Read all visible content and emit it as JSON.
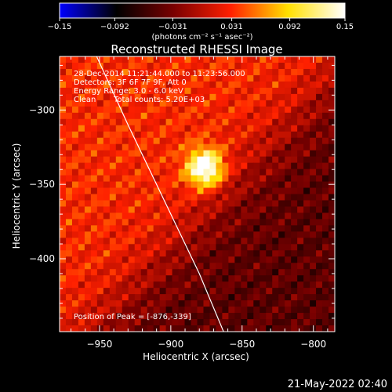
{
  "chart_data": {
    "type": "heatmap",
    "title": "Reconstructed RHESSI Image",
    "xlabel": "Heliocentric X (arcsec)",
    "ylabel": "Heliocentric Y (arcsec)",
    "xlim": [
      -978,
      -785
    ],
    "ylim": [
      -449,
      -264
    ],
    "x_ticks": [
      -950,
      -900,
      -850,
      -800
    ],
    "x_tick_labels": [
      "−950",
      "−900",
      "−850",
      "−800"
    ],
    "y_ticks": [
      -300,
      -350,
      -400
    ],
    "y_tick_labels": [
      "−300",
      "−350",
      "−400"
    ],
    "colorbar": {
      "range": [
        -0.15,
        0.15
      ],
      "ticks": [
        -0.15,
        -0.092,
        -0.031,
        0.031,
        0.092,
        0.15
      ],
      "tick_labels": [
        "−0.15",
        "−0.092",
        "−0.031",
        "0.031",
        "0.092",
        "0.15"
      ],
      "unit_label": "(photons cm⁻² s⁻¹ asec⁻²)",
      "colors": [
        "#0000ff",
        "#000000",
        "#7a0000",
        "#ff2000",
        "#ffe000",
        "#ffffff"
      ]
    },
    "annotations": {
      "time_range": "28-Dec-2014 11:21:44.000 to 11:23:56.000",
      "detectors": "Detectors: 3F 6F 7F 9F, Att 0",
      "energy": "Energy Range: 3.0 - 6.0 keV",
      "method": "Clean",
      "counts": "Total counts: 5.20E+03",
      "peak": "Position of Peak = [-876,-339]"
    },
    "peak": {
      "x": -876,
      "y": -339,
      "value": 0.15
    },
    "limb_curve": [
      [
        -952,
        -264
      ],
      [
        -930,
        -310
      ],
      [
        -905,
        -360
      ],
      [
        -880,
        -410
      ],
      [
        -863,
        -449
      ]
    ],
    "grid": false,
    "legend": "none"
  },
  "footer": {
    "timestamp": "21-May-2022 02:40"
  }
}
